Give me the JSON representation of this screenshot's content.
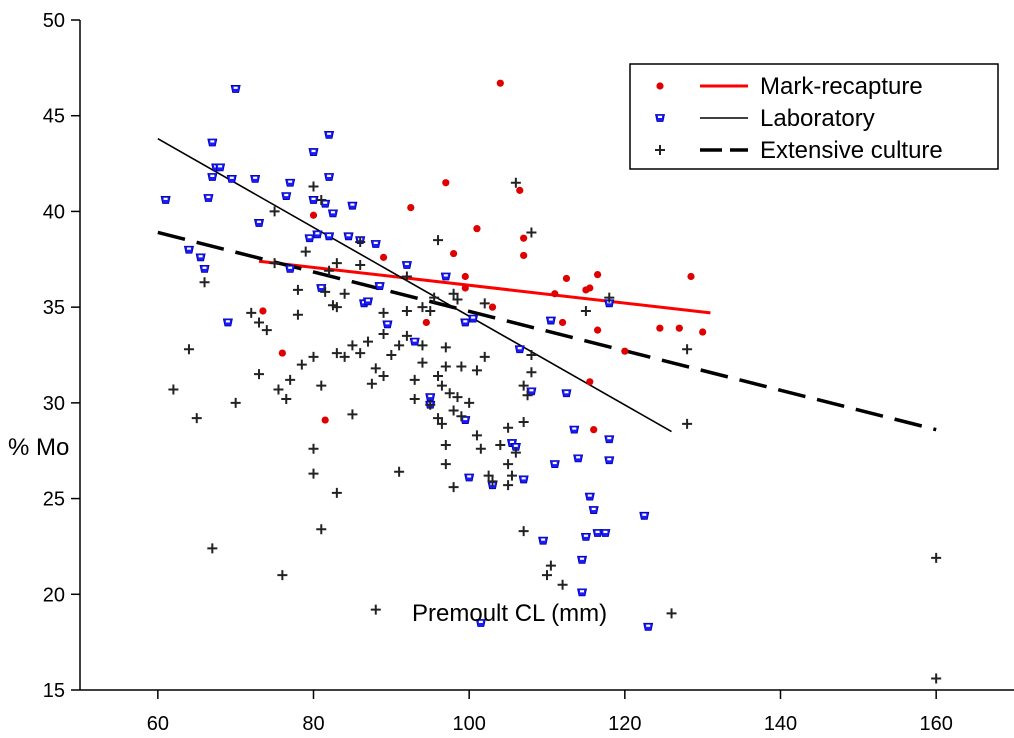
{
  "chart_data": {
    "type": "scatter",
    "title": "",
    "xlabel": "Premoult CL (mm)",
    "ylabel": "% Mo",
    "xlim": [
      50,
      170
    ],
    "ylim": [
      15,
      50
    ],
    "xticks": [
      60,
      80,
      100,
      120,
      140,
      160
    ],
    "yticks": [
      15,
      20,
      25,
      30,
      35,
      40,
      45,
      50
    ],
    "grid": false,
    "legend_position": "top-right",
    "series": [
      {
        "name": "Mark-recapture",
        "marker": "circle",
        "color": "#e00000",
        "points": [
          [
            73.5,
            34.8
          ],
          [
            76.0,
            32.6
          ],
          [
            80.0,
            39.8
          ],
          [
            81.5,
            29.1
          ],
          [
            82.0,
            41.8
          ],
          [
            89.0,
            37.6
          ],
          [
            92.5,
            40.2
          ],
          [
            94.5,
            34.2
          ],
          [
            97.0,
            41.5
          ],
          [
            98.0,
            37.8
          ],
          [
            99.5,
            36.0
          ],
          [
            99.5,
            36.6
          ],
          [
            99.5,
            34.2
          ],
          [
            101.0,
            39.1
          ],
          [
            103.0,
            35.0
          ],
          [
            104.0,
            46.7
          ],
          [
            106.5,
            41.1
          ],
          [
            107.0,
            38.6
          ],
          [
            107.0,
            37.7
          ],
          [
            111.0,
            35.7
          ],
          [
            112.0,
            34.2
          ],
          [
            112.5,
            36.5
          ],
          [
            115.0,
            35.9
          ],
          [
            115.5,
            31.1
          ],
          [
            115.5,
            36.0
          ],
          [
            116.0,
            28.6
          ],
          [
            116.5,
            33.8
          ],
          [
            116.5,
            36.7
          ],
          [
            120.0,
            32.7
          ],
          [
            124.5,
            33.9
          ],
          [
            127.0,
            33.9
          ],
          [
            128.5,
            36.6
          ],
          [
            130.0,
            33.7
          ]
        ]
      },
      {
        "name": "Laboratory",
        "marker": "triangle-down",
        "color": "#1a1aff",
        "points": [
          [
            61.0,
            40.6
          ],
          [
            64.0,
            38.0
          ],
          [
            65.5,
            37.6
          ],
          [
            66.0,
            37.0
          ],
          [
            66.5,
            40.7
          ],
          [
            67.0,
            41.8
          ],
          [
            67.0,
            43.6
          ],
          [
            67.5,
            42.3
          ],
          [
            68.0,
            42.3
          ],
          [
            69.0,
            34.2
          ],
          [
            70.0,
            46.4
          ],
          [
            69.5,
            41.7
          ],
          [
            72.5,
            41.7
          ],
          [
            73.0,
            39.4
          ],
          [
            76.5,
            40.8
          ],
          [
            77.0,
            41.5
          ],
          [
            77.0,
            37.0
          ],
          [
            79.5,
            38.6
          ],
          [
            80.0,
            40.6
          ],
          [
            80.0,
            43.1
          ],
          [
            80.5,
            38.8
          ],
          [
            81.0,
            36.0
          ],
          [
            81.5,
            40.4
          ],
          [
            82.0,
            44.0
          ],
          [
            82.0,
            41.8
          ],
          [
            82.0,
            38.7
          ],
          [
            82.5,
            39.9
          ],
          [
            84.5,
            38.7
          ],
          [
            85.0,
            40.3
          ],
          [
            86.0,
            38.5
          ],
          [
            86.5,
            35.2
          ],
          [
            87.0,
            35.3
          ],
          [
            88.0,
            38.3
          ],
          [
            88.5,
            36.1
          ],
          [
            89.5,
            34.1
          ],
          [
            92.0,
            37.2
          ],
          [
            93.0,
            33.2
          ],
          [
            95.0,
            30.3
          ],
          [
            95.0,
            29.9
          ],
          [
            97.0,
            36.6
          ],
          [
            99.5,
            34.2
          ],
          [
            99.5,
            29.1
          ],
          [
            100.0,
            26.1
          ],
          [
            100.5,
            34.4
          ],
          [
            101.5,
            18.5
          ],
          [
            103.0,
            25.7
          ],
          [
            105.5,
            27.9
          ],
          [
            106.0,
            27.7
          ],
          [
            106.5,
            32.8
          ],
          [
            107.0,
            26.0
          ],
          [
            108.0,
            30.6
          ],
          [
            109.5,
            22.8
          ],
          [
            110.5,
            34.3
          ],
          [
            111.0,
            26.8
          ],
          [
            112.5,
            30.5
          ],
          [
            113.5,
            28.6
          ],
          [
            114.0,
            27.1
          ],
          [
            114.5,
            21.8
          ],
          [
            114.5,
            20.1
          ],
          [
            115.0,
            23.0
          ],
          [
            115.5,
            25.1
          ],
          [
            116.0,
            24.4
          ],
          [
            116.5,
            23.2
          ],
          [
            117.5,
            23.2
          ],
          [
            118.0,
            28.1
          ],
          [
            118.0,
            27.0
          ],
          [
            118.0,
            35.2
          ],
          [
            122.5,
            24.1
          ],
          [
            123.0,
            18.3
          ]
        ]
      },
      {
        "name": "Extensive culture",
        "marker": "plus",
        "color": "#222222",
        "points": [
          [
            62.0,
            30.7
          ],
          [
            64.0,
            32.8
          ],
          [
            65.0,
            29.2
          ],
          [
            66.0,
            36.3
          ],
          [
            67.0,
            22.4
          ],
          [
            70.0,
            30.0
          ],
          [
            72.0,
            34.7
          ],
          [
            73.0,
            34.2
          ],
          [
            73.0,
            31.5
          ],
          [
            74.0,
            33.8
          ],
          [
            75.0,
            40.0
          ],
          [
            75.0,
            37.3
          ],
          [
            75.5,
            30.7
          ],
          [
            76.0,
            21.0
          ],
          [
            76.5,
            30.2
          ],
          [
            77.0,
            31.2
          ],
          [
            78.0,
            35.9
          ],
          [
            78.0,
            34.6
          ],
          [
            78.5,
            32.0
          ],
          [
            79.0,
            37.9
          ],
          [
            80.0,
            41.3
          ],
          [
            80.0,
            27.6
          ],
          [
            80.0,
            26.3
          ],
          [
            80.0,
            32.4
          ],
          [
            81.0,
            40.6
          ],
          [
            81.0,
            23.4
          ],
          [
            81.0,
            30.9
          ],
          [
            81.5,
            35.8
          ],
          [
            82.0,
            36.9
          ],
          [
            82.5,
            35.1
          ],
          [
            83.0,
            37.3
          ],
          [
            83.0,
            35.0
          ],
          [
            83.0,
            32.6
          ],
          [
            83.0,
            25.3
          ],
          [
            84.0,
            32.4
          ],
          [
            84.0,
            35.7
          ],
          [
            85.0,
            33.0
          ],
          [
            85.0,
            29.4
          ],
          [
            86.0,
            32.6
          ],
          [
            86.0,
            37.2
          ],
          [
            86.0,
            38.4
          ],
          [
            87.0,
            33.2
          ],
          [
            87.5,
            31.0
          ],
          [
            88.0,
            19.2
          ],
          [
            88.0,
            31.8
          ],
          [
            89.0,
            34.7
          ],
          [
            89.0,
            33.6
          ],
          [
            89.0,
            31.4
          ],
          [
            90.0,
            32.5
          ],
          [
            91.0,
            26.4
          ],
          [
            91.0,
            33.0
          ],
          [
            92.0,
            36.6
          ],
          [
            92.0,
            34.8
          ],
          [
            92.0,
            33.5
          ],
          [
            93.0,
            31.2
          ],
          [
            93.0,
            30.2
          ],
          [
            94.0,
            35.0
          ],
          [
            94.0,
            33.0
          ],
          [
            94.0,
            32.1
          ],
          [
            95.0,
            34.8
          ],
          [
            95.0,
            29.9
          ],
          [
            95.5,
            35.5
          ],
          [
            96.0,
            38.5
          ],
          [
            96.0,
            31.4
          ],
          [
            96.0,
            29.2
          ],
          [
            96.5,
            28.9
          ],
          [
            96.5,
            30.9
          ],
          [
            97.0,
            32.9
          ],
          [
            97.0,
            31.9
          ],
          [
            97.0,
            27.8
          ],
          [
            97.0,
            26.8
          ],
          [
            97.5,
            30.5
          ],
          [
            98.0,
            35.7
          ],
          [
            98.0,
            29.6
          ],
          [
            98.0,
            25.6
          ],
          [
            98.5,
            35.4
          ],
          [
            98.5,
            30.3
          ],
          [
            99.0,
            31.9
          ],
          [
            99.0,
            29.3
          ],
          [
            100.0,
            30.0
          ],
          [
            101.0,
            31.7
          ],
          [
            101.0,
            28.3
          ],
          [
            101.5,
            27.6
          ],
          [
            102.0,
            32.4
          ],
          [
            102.0,
            35.2
          ],
          [
            102.5,
            26.2
          ],
          [
            103.0,
            25.9
          ],
          [
            104.0,
            27.8
          ],
          [
            105.0,
            28.7
          ],
          [
            105.0,
            26.8
          ],
          [
            105.0,
            25.7
          ],
          [
            105.5,
            26.2
          ],
          [
            106.0,
            27.4
          ],
          [
            106.0,
            41.5
          ],
          [
            107.0,
            30.9
          ],
          [
            107.0,
            29.0
          ],
          [
            107.0,
            23.3
          ],
          [
            107.5,
            30.4
          ],
          [
            108.0,
            38.9
          ],
          [
            108.0,
            32.5
          ],
          [
            108.0,
            31.6
          ],
          [
            110.0,
            21.0
          ],
          [
            110.5,
            21.5
          ],
          [
            112.0,
            20.5
          ],
          [
            115.0,
            34.8
          ],
          [
            118.0,
            35.5
          ],
          [
            126.0,
            19.0
          ],
          [
            128.0,
            32.8
          ],
          [
            128.0,
            28.9
          ],
          [
            160.0,
            21.9
          ],
          [
            160.0,
            15.6
          ]
        ]
      }
    ],
    "lines": [
      {
        "name": "Mark-recapture",
        "style": "solid",
        "color": "#ff0000",
        "width": 3,
        "points": [
          [
            73,
            37.4
          ],
          [
            131,
            34.7
          ]
        ]
      },
      {
        "name": "Laboratory",
        "style": "solid",
        "color": "#000000",
        "width": 1.6,
        "points": [
          [
            60,
            43.8
          ],
          [
            126,
            28.5
          ]
        ]
      },
      {
        "name": "Extensive culture",
        "style": "dashed",
        "color": "#000000",
        "width": 3.5,
        "points": [
          [
            60,
            38.9
          ],
          [
            160,
            28.6
          ]
        ]
      }
    ]
  }
}
